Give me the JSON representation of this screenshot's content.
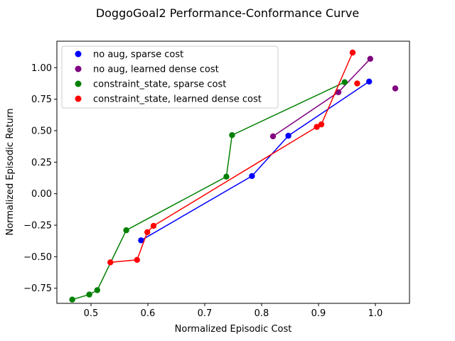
{
  "chart_data": {
    "type": "scatter",
    "title": "DoggoGoal2 Performance-Conformance Curve",
    "xlabel": "Normalized Episodic Cost",
    "ylabel": "Normalized Episodic Return",
    "xlim": [
      0.44,
      1.06
    ],
    "ylim": [
      -0.87,
      1.21
    ],
    "xticks": [
      0.5,
      0.6,
      0.7,
      0.8,
      0.9,
      1.0
    ],
    "xtick_labels": [
      "0.5",
      "0.6",
      "0.7",
      "0.8",
      "0.9",
      "1.0"
    ],
    "yticks": [
      -0.75,
      -0.5,
      -0.25,
      0.0,
      0.25,
      0.5,
      0.75,
      1.0
    ],
    "ytick_labels": [
      "−0.75",
      "−0.50",
      "−0.25",
      "0.00",
      "0.25",
      "0.50",
      "0.75",
      "1.00"
    ],
    "legend_position": "upper-left",
    "series": [
      {
        "name": "no aug, sparse cost",
        "color": "#0000ff",
        "points": [
          [
            0.588,
            -0.37
          ],
          [
            0.783,
            0.14
          ],
          [
            0.847,
            0.46
          ],
          [
            0.989,
            0.89
          ]
        ],
        "line": [
          [
            0.588,
            -0.37
          ],
          [
            0.783,
            0.14
          ],
          [
            0.847,
            0.46
          ],
          [
            0.989,
            0.89
          ]
        ]
      },
      {
        "name": "no aug, learned dense cost",
        "color": "#800080",
        "points": [
          [
            0.82,
            0.455
          ],
          [
            0.935,
            0.805
          ],
          [
            0.991,
            1.07
          ],
          [
            1.035,
            0.835
          ]
        ],
        "line": [
          [
            0.82,
            0.455
          ],
          [
            0.935,
            0.805
          ],
          [
            0.991,
            1.07
          ]
        ]
      },
      {
        "name": "constraint_state, sparse cost",
        "color": "#008000",
        "points": [
          [
            0.467,
            -0.84
          ],
          [
            0.497,
            -0.8
          ],
          [
            0.511,
            -0.765
          ],
          [
            0.562,
            -0.29
          ],
          [
            0.738,
            0.135
          ],
          [
            0.748,
            0.465
          ],
          [
            0.946,
            0.885
          ]
        ],
        "line": [
          [
            0.467,
            -0.84
          ],
          [
            0.497,
            -0.8
          ],
          [
            0.511,
            -0.765
          ],
          [
            0.562,
            -0.29
          ],
          [
            0.738,
            0.135
          ],
          [
            0.748,
            0.465
          ],
          [
            0.946,
            0.885
          ]
        ]
      },
      {
        "name": "constraint_state, learned dense cost",
        "color": "#ff0000",
        "points": [
          [
            0.534,
            -0.545
          ],
          [
            0.581,
            -0.525
          ],
          [
            0.599,
            -0.305
          ],
          [
            0.61,
            -0.255
          ],
          [
            0.897,
            0.53
          ],
          [
            0.905,
            0.55
          ],
          [
            0.96,
            1.12
          ],
          [
            0.968,
            0.875
          ]
        ],
        "line": [
          [
            0.534,
            -0.545
          ],
          [
            0.581,
            -0.525
          ],
          [
            0.599,
            -0.305
          ],
          [
            0.61,
            -0.255
          ],
          [
            0.897,
            0.53
          ],
          [
            0.905,
            0.55
          ],
          [
            0.96,
            1.12
          ]
        ]
      }
    ]
  }
}
